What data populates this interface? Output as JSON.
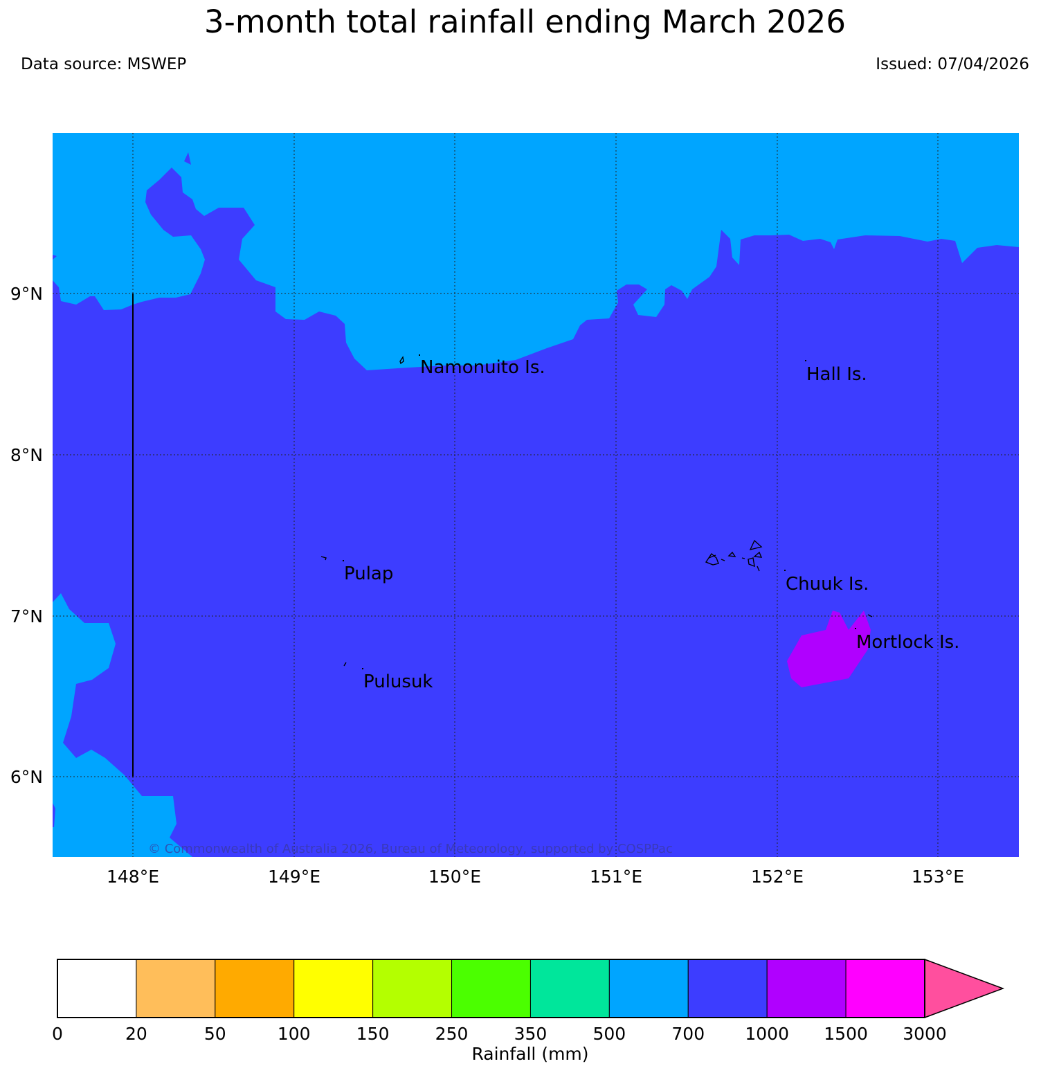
{
  "header": {
    "title": "3-month total rainfall ending March 2026",
    "data_source": "Data source: MSWEP",
    "issued": "Issued: 07/04/2026"
  },
  "map": {
    "lon_ticks": [
      "148°E",
      "149°E",
      "150°E",
      "151°E",
      "152°E",
      "153°E"
    ],
    "lat_ticks": [
      "9°N",
      "8°N",
      "7°N",
      "6°N"
    ],
    "places": {
      "namonuito": "Namonuito Is.",
      "hall": "Hall Is.",
      "pulap": "Pulap",
      "chuuk": "Chuuk Is.",
      "mortlock": "Mortlock Is.",
      "pulusuk": "Pulusuk"
    },
    "copyright": "© Commonwealth of Australia 2026, Bureau of Meteorology, supported by COSPPac",
    "colors": {
      "band_500_700": "#00a5ff",
      "band_700_1000": "#3d3dff",
      "band_1000_1500": "#b000ff"
    }
  },
  "colorbar": {
    "label": "Rainfall (mm)",
    "ticks": [
      "0",
      "20",
      "50",
      "100",
      "150",
      "250",
      "350",
      "500",
      "700",
      "1000",
      "1500",
      "3000"
    ],
    "colors": [
      "#ffffff",
      "#ffbe5a",
      "#ffaa00",
      "#ffff00",
      "#b4ff00",
      "#4bff00",
      "#00e69b",
      "#00a5ff",
      "#3d3dff",
      "#b000ff",
      "#ff00ff"
    ],
    "extend_color": "#ff4f9e"
  }
}
